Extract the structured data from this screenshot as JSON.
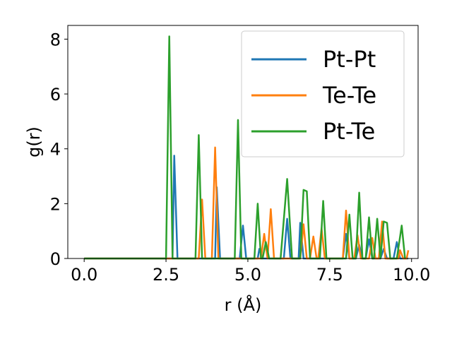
{
  "chart_data": {
    "type": "line",
    "title": "",
    "xlabel": "r (Å)",
    "ylabel": "g(r)",
    "xlim": [
      -0.5,
      10.2
    ],
    "ylim": [
      0,
      8.5
    ],
    "xticks": [
      0.0,
      2.5,
      5.0,
      7.5,
      10.0
    ],
    "xtick_labels": [
      "0.0",
      "2.5",
      "5.0",
      "7.5",
      "10.0"
    ],
    "yticks": [
      0,
      2,
      4,
      6,
      8
    ],
    "ytick_labels": [
      "0",
      "2",
      "4",
      "6",
      "8"
    ],
    "grid": false,
    "legend_position": "top-right",
    "series": [
      {
        "name": "Pt-Pt",
        "color": "#1f77b4",
        "points": [
          [
            0.0,
            0
          ],
          [
            2.6,
            0
          ],
          [
            2.7,
            0
          ],
          [
            2.75,
            3.75
          ],
          [
            2.85,
            0
          ],
          [
            4.0,
            0
          ],
          [
            4.05,
            2.6
          ],
          [
            4.15,
            0
          ],
          [
            4.75,
            0
          ],
          [
            4.85,
            1.2
          ],
          [
            4.95,
            0
          ],
          [
            5.3,
            0
          ],
          [
            5.35,
            0.35
          ],
          [
            5.45,
            0
          ],
          [
            6.1,
            0
          ],
          [
            6.2,
            1.45
          ],
          [
            6.3,
            0
          ],
          [
            6.55,
            0
          ],
          [
            6.6,
            1.3
          ],
          [
            6.7,
            0
          ],
          [
            7.9,
            0
          ],
          [
            8.0,
            0.9
          ],
          [
            8.1,
            0
          ],
          [
            8.3,
            0
          ],
          [
            8.4,
            0.5
          ],
          [
            8.5,
            0
          ],
          [
            8.6,
            0
          ],
          [
            8.7,
            0.7
          ],
          [
            8.8,
            0
          ],
          [
            9.05,
            0
          ],
          [
            9.15,
            0.35
          ],
          [
            9.25,
            0
          ],
          [
            9.45,
            0
          ],
          [
            9.55,
            0.6
          ],
          [
            9.65,
            0
          ],
          [
            9.9,
            0
          ]
        ]
      },
      {
        "name": "Te-Te",
        "color": "#ff7f0e",
        "points": [
          [
            0.0,
            0
          ],
          [
            3.5,
            0
          ],
          [
            3.6,
            2.15
          ],
          [
            3.7,
            0
          ],
          [
            3.9,
            0
          ],
          [
            4.0,
            4.05
          ],
          [
            4.1,
            0
          ],
          [
            5.4,
            0
          ],
          [
            5.5,
            0.9
          ],
          [
            5.6,
            0
          ],
          [
            5.7,
            1.8
          ],
          [
            5.8,
            0
          ],
          [
            6.6,
            0
          ],
          [
            6.7,
            1.25
          ],
          [
            6.8,
            0
          ],
          [
            6.9,
            0
          ],
          [
            7.0,
            0.8
          ],
          [
            7.1,
            0
          ],
          [
            7.15,
            0
          ],
          [
            7.25,
            1.1
          ],
          [
            7.35,
            0
          ],
          [
            7.9,
            0
          ],
          [
            8.0,
            1.75
          ],
          [
            8.1,
            0
          ],
          [
            8.25,
            0
          ],
          [
            8.35,
            0.85
          ],
          [
            8.45,
            0
          ],
          [
            8.7,
            0
          ],
          [
            8.8,
            0.75
          ],
          [
            8.9,
            0
          ],
          [
            9.0,
            0
          ],
          [
            9.1,
            1.35
          ],
          [
            9.2,
            0
          ],
          [
            9.6,
            0
          ],
          [
            9.65,
            0.3
          ],
          [
            9.75,
            0
          ],
          [
            9.85,
            0
          ],
          [
            9.9,
            0.3
          ]
        ]
      },
      {
        "name": "Pt-Te",
        "color": "#2ca02c",
        "points": [
          [
            0.0,
            0
          ],
          [
            2.5,
            0
          ],
          [
            2.6,
            8.1
          ],
          [
            2.7,
            0
          ],
          [
            3.4,
            0
          ],
          [
            3.5,
            4.5
          ],
          [
            3.6,
            0
          ],
          [
            4.6,
            0
          ],
          [
            4.7,
            5.05
          ],
          [
            4.8,
            0
          ],
          [
            5.2,
            0
          ],
          [
            5.3,
            2.0
          ],
          [
            5.4,
            0
          ],
          [
            5.45,
            0
          ],
          [
            5.55,
            0.6
          ],
          [
            5.65,
            0
          ],
          [
            6.0,
            0
          ],
          [
            6.2,
            2.9
          ],
          [
            6.35,
            0
          ],
          [
            6.6,
            0
          ],
          [
            6.7,
            2.5
          ],
          [
            6.8,
            2.45
          ],
          [
            6.9,
            0
          ],
          [
            7.2,
            0
          ],
          [
            7.3,
            2.1
          ],
          [
            7.4,
            0
          ],
          [
            8.0,
            0
          ],
          [
            8.1,
            1.6
          ],
          [
            8.2,
            0
          ],
          [
            8.3,
            0
          ],
          [
            8.4,
            2.4
          ],
          [
            8.5,
            0
          ],
          [
            8.6,
            0
          ],
          [
            8.7,
            1.5
          ],
          [
            8.8,
            0
          ],
          [
            8.85,
            0
          ],
          [
            8.95,
            1.45
          ],
          [
            9.05,
            0
          ],
          [
            9.15,
            1.35
          ],
          [
            9.25,
            1.3
          ],
          [
            9.35,
            0
          ],
          [
            9.55,
            0
          ],
          [
            9.7,
            1.2
          ],
          [
            9.8,
            0
          ]
        ]
      }
    ]
  }
}
